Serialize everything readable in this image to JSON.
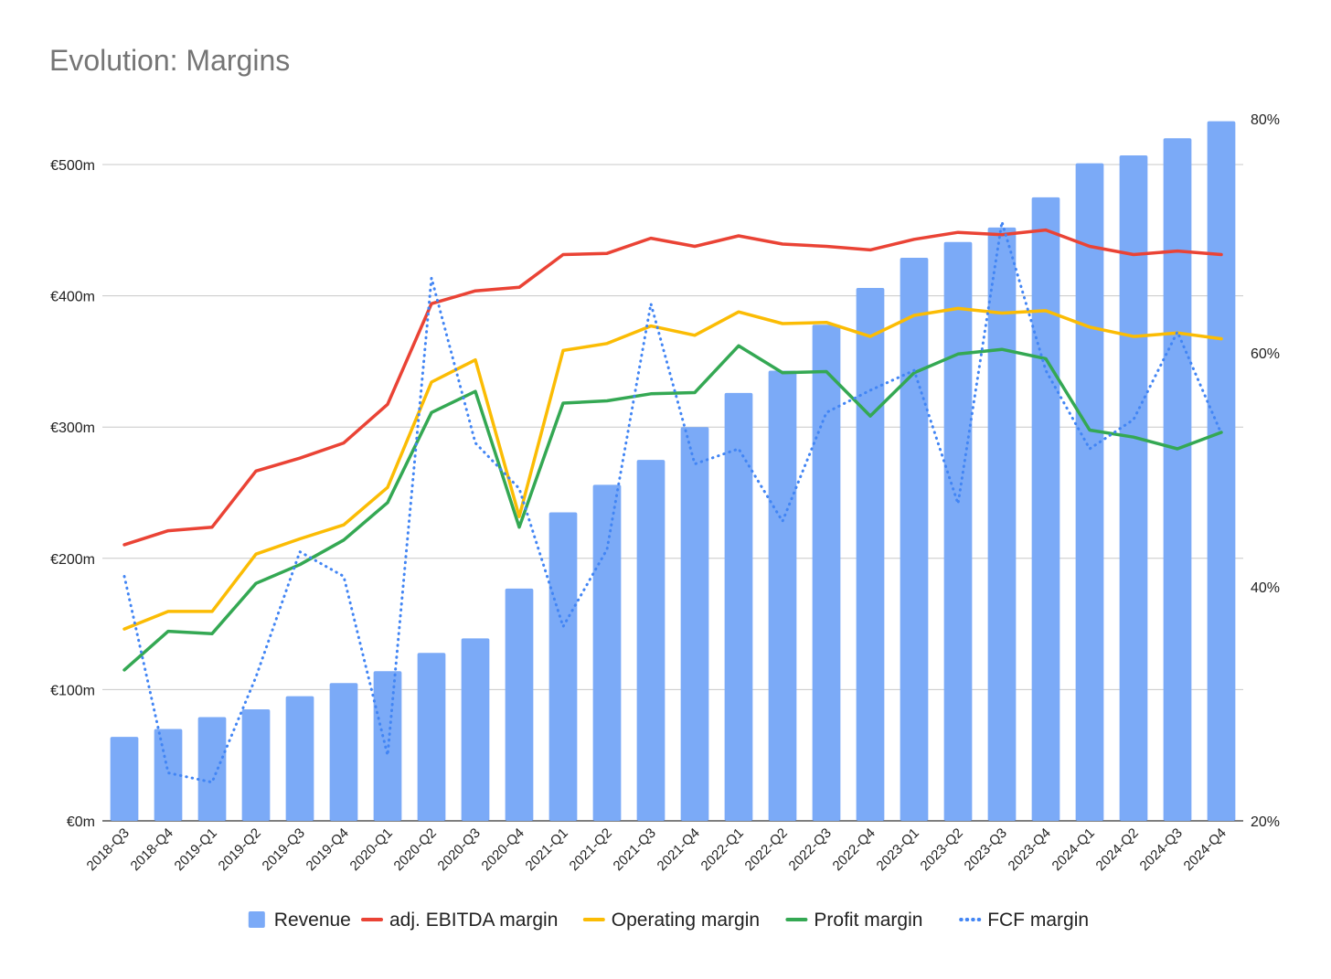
{
  "chart_data": {
    "type": "bar",
    "title": "Evolution: Margins",
    "categories": [
      "2018-Q3",
      "2018-Q4",
      "2019-Q1",
      "2019-Q2",
      "2019-Q3",
      "2019-Q4",
      "2020-Q1",
      "2020-Q2",
      "2020-Q3",
      "2020-Q4",
      "2021-Q1",
      "2021-Q2",
      "2021-Q3",
      "2021-Q4",
      "2022-Q1",
      "2022-Q2",
      "2022-Q3",
      "2022-Q4",
      "2023-Q1",
      "2023-Q2",
      "2023-Q3",
      "2023-Q4",
      "2024-Q1",
      "2024-Q2",
      "2024-Q3",
      "2024-Q4"
    ],
    "left_axis": {
      "ylim": [
        0,
        500
      ],
      "ticks": [
        0,
        100,
        200,
        300,
        400,
        500
      ],
      "tick_labels": [
        "€0m",
        "€100m",
        "€200m",
        "€300m",
        "€400m",
        "€500m"
      ]
    },
    "right_axis": {
      "ylim": [
        20,
        80
      ],
      "ticks": [
        20,
        40,
        60,
        80
      ],
      "tick_labels": [
        "20%",
        "40%",
        "60%",
        "80%"
      ]
    },
    "grid": true,
    "legend_position": "bottom",
    "series": [
      {
        "name": "Revenue",
        "kind": "bar",
        "axis": "left",
        "color": "#7BAAF7",
        "values": [
          64,
          70,
          79,
          85,
          95,
          105,
          114,
          128,
          139,
          177,
          235,
          256,
          275,
          300,
          326,
          343,
          378,
          406,
          429,
          441,
          452,
          475,
          501,
          507,
          520,
          533
        ]
      },
      {
        "name": "adj. EBITDA margin",
        "kind": "line",
        "axis": "right",
        "color": "#EA4335",
        "dash": "solid",
        "values": [
          43.6,
          44.8,
          45.1,
          49.9,
          51.0,
          52.3,
          55.6,
          64.2,
          65.3,
          65.6,
          68.4,
          68.5,
          69.8,
          69.1,
          70.0,
          69.3,
          69.1,
          68.8,
          69.7,
          70.3,
          70.1,
          70.5,
          69.1,
          68.4,
          68.7,
          68.4
        ]
      },
      {
        "name": "Operating margin",
        "kind": "line",
        "axis": "right",
        "color": "#FBBC04",
        "dash": "solid",
        "values": [
          36.4,
          37.9,
          37.9,
          42.8,
          44.1,
          45.3,
          48.5,
          57.5,
          59.4,
          46.0,
          60.2,
          60.8,
          62.3,
          61.5,
          63.5,
          62.5,
          62.6,
          61.4,
          63.2,
          63.8,
          63.4,
          63.6,
          62.2,
          61.4,
          61.7,
          61.2
        ]
      },
      {
        "name": "Profit margin",
        "kind": "line",
        "axis": "right",
        "color": "#34A853",
        "dash": "solid",
        "values": [
          32.9,
          36.2,
          36.0,
          40.3,
          41.9,
          44.0,
          47.2,
          54.9,
          56.7,
          45.1,
          55.7,
          55.9,
          56.5,
          56.6,
          60.6,
          58.3,
          58.4,
          54.6,
          58.3,
          59.9,
          60.3,
          59.5,
          53.4,
          52.8,
          51.8,
          53.2
        ]
      },
      {
        "name": "FCF margin",
        "kind": "line",
        "axis": "right",
        "color": "#4285F4",
        "dash": "dotted",
        "values": [
          40.9,
          24.1,
          23.3,
          32.3,
          43.0,
          40.9,
          25.6,
          66.4,
          52.3,
          48.4,
          36.6,
          43.2,
          64.2,
          50.5,
          51.8,
          45.6,
          54.9,
          56.8,
          58.5,
          47.1,
          71.2,
          58.5,
          51.8,
          54.3,
          61.8,
          53.1
        ]
      }
    ]
  }
}
